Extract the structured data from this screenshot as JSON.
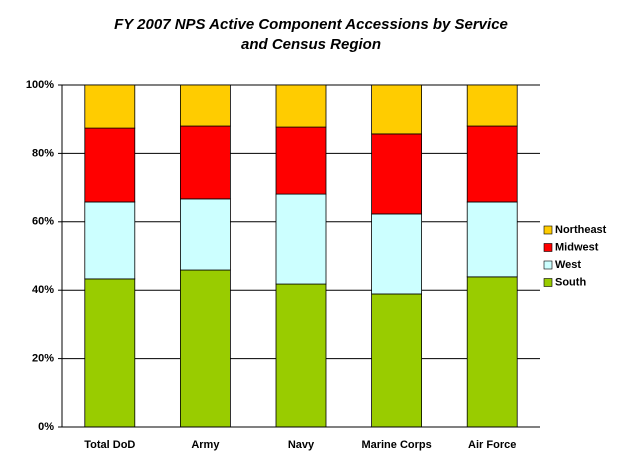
{
  "chart_data": {
    "type": "stacked-bar",
    "title": [
      "FY 2007 NPS Active Component Accessions by Service",
      "and Census Region"
    ],
    "categories": [
      "Total DoD",
      "Army",
      "Navy",
      "Marine Corps",
      "Air Force"
    ],
    "series": [
      {
        "name": "South",
        "color": "#99cc00",
        "values": [
          43.3,
          45.9,
          41.8,
          38.9,
          43.9
        ]
      },
      {
        "name": "West",
        "color": "#ccffff",
        "values": [
          22.5,
          20.8,
          26.3,
          23.4,
          21.9
        ]
      },
      {
        "name": "Midwest",
        "color": "#ff0000",
        "values": [
          21.6,
          21.3,
          19.6,
          23.4,
          22.2
        ]
      },
      {
        "name": "Northeast",
        "color": "#ffcc00",
        "values": [
          12.6,
          12.0,
          12.3,
          14.3,
          12.0
        ]
      }
    ],
    "ylim": [
      0,
      100
    ],
    "yticks": [
      {
        "value": 0,
        "label": "0%"
      },
      {
        "value": 20,
        "label": "20%"
      },
      {
        "value": 40,
        "label": "40%"
      },
      {
        "value": 60,
        "label": "60%"
      },
      {
        "value": 80,
        "label": "80%"
      },
      {
        "value": 100,
        "label": "100%"
      }
    ],
    "grid": true,
    "legend": "right"
  }
}
